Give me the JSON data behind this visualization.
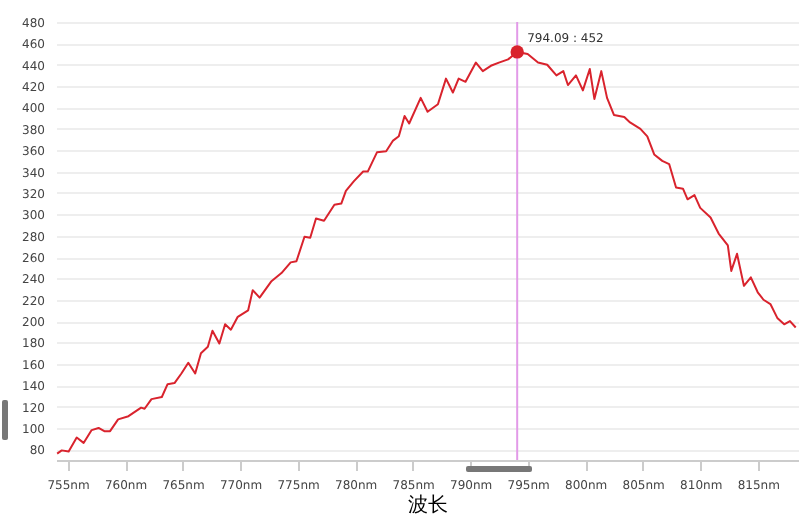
{
  "chart_data": {
    "type": "line",
    "xlabel": "波长",
    "x": [
      754.1,
      754.5,
      755.1,
      755.8,
      756.4,
      757.1,
      757.7,
      758.2,
      758.7,
      759.4,
      760.3,
      761.4,
      761.7,
      762.3,
      763.2,
      763.7,
      764.3,
      764.9,
      765.5,
      766.1,
      766.6,
      767.2,
      767.6,
      768.2,
      768.7,
      769.2,
      769.8,
      770.7,
      771.1,
      771.7,
      772.7,
      773.6,
      774.4,
      774.9,
      775.6,
      776.1,
      776.6,
      777.3,
      778.2,
      778.8,
      779.2,
      779.9,
      780.7,
      781.1,
      781.9,
      782.7,
      783.3,
      783.8,
      784.3,
      784.7,
      785.7,
      786.3,
      787.2,
      787.9,
      788.5,
      789.0,
      789.6,
      790.5,
      791.1,
      791.8,
      792.5,
      793.3,
      794.09,
      795.0,
      795.9,
      796.7,
      797.5,
      798.1,
      798.5,
      799.2,
      799.8,
      800.4,
      800.8,
      801.4,
      801.9,
      802.5,
      803.4,
      803.9,
      804.8,
      805.4,
      806.0,
      806.7,
      807.3,
      807.9,
      808.5,
      808.9,
      809.5,
      810.0,
      810.9,
      811.6,
      812.4,
      812.7,
      813.2,
      813.8,
      814.4,
      815.0,
      815.5,
      816.1,
      816.7,
      817.3,
      817.8,
      818.3
    ],
    "series": [
      {
        "color": "#d9232d",
        "values": [
          76,
          79,
          78,
          91,
          86,
          98,
          100,
          97,
          97,
          108,
          111,
          119,
          118,
          127,
          129,
          141,
          142,
          151,
          161,
          151,
          170,
          176,
          191,
          179,
          197,
          192,
          204,
          210,
          229,
          222,
          237,
          245,
          255,
          256,
          279,
          278,
          296,
          294,
          309,
          310,
          322,
          331,
          340,
          340,
          358,
          359,
          369,
          373,
          392,
          385,
          409,
          396,
          403,
          427,
          414,
          427,
          424,
          442,
          434,
          439,
          442,
          445,
          452,
          450,
          442,
          440,
          430,
          434,
          421,
          430,
          416,
          436,
          408,
          434,
          409,
          393,
          391,
          386,
          380,
          373,
          356,
          350,
          347,
          325,
          324,
          314,
          318,
          306,
          297,
          282,
          271,
          247,
          263,
          233,
          241,
          227,
          220,
          216,
          203,
          197,
          200,
          194
        ]
      }
    ],
    "xlim": [
      754,
      818.5
    ],
    "xticks": [
      {
        "value": 755,
        "label": "755nm"
      },
      {
        "value": 760,
        "label": "760nm"
      },
      {
        "value": 765,
        "label": "765nm"
      },
      {
        "value": 770,
        "label": "770nm"
      },
      {
        "value": 775,
        "label": "775nm"
      },
      {
        "value": 780,
        "label": "780nm"
      },
      {
        "value": 785,
        "label": "785nm"
      },
      {
        "value": 790,
        "label": "790nm"
      },
      {
        "value": 795,
        "label": "795nm"
      },
      {
        "value": 800,
        "label": "800nm"
      },
      {
        "value": 805,
        "label": "805nm"
      },
      {
        "value": 810,
        "label": "810nm"
      },
      {
        "value": 815,
        "label": "815nm"
      }
    ],
    "ylim": [
      70,
      480
    ],
    "yticks": [
      80,
      100,
      120,
      140,
      160,
      180,
      200,
      220,
      240,
      260,
      280,
      300,
      320,
      340,
      360,
      380,
      400,
      420,
      440,
      460,
      480
    ],
    "grid": "y",
    "ref_lines": [
      {
        "axis": "x",
        "value": 794.09,
        "color": "#e29ae8"
      }
    ],
    "annotations": [
      {
        "text": "794.09 : 452",
        "x": 794.09,
        "y": 452
      }
    ]
  }
}
